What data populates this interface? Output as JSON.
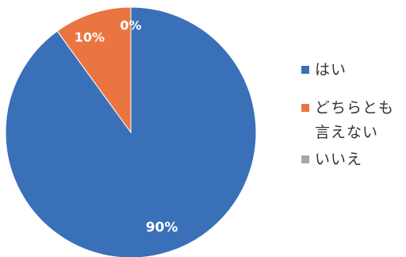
{
  "chart_data": {
    "type": "pie",
    "title": "",
    "slices": [
      {
        "label": "はい",
        "value": 90,
        "data_label": "90%",
        "color": "#3a70b8"
      },
      {
        "label": "どちらとも言えない",
        "value": 10,
        "data_label": "10%",
        "color": "#ea7540"
      },
      {
        "label": "いいえ",
        "value": 0,
        "data_label": "0%",
        "color": "#a6a6a6"
      }
    ],
    "legend": {
      "placement": "right",
      "entries": [
        {
          "lines": [
            "はい"
          ],
          "color": "#3a70b8"
        },
        {
          "lines": [
            "どちらとも",
            "言えない"
          ],
          "color": "#ea7540"
        },
        {
          "lines": [
            "いいえ"
          ],
          "color": "#a6a6a6"
        }
      ]
    }
  }
}
